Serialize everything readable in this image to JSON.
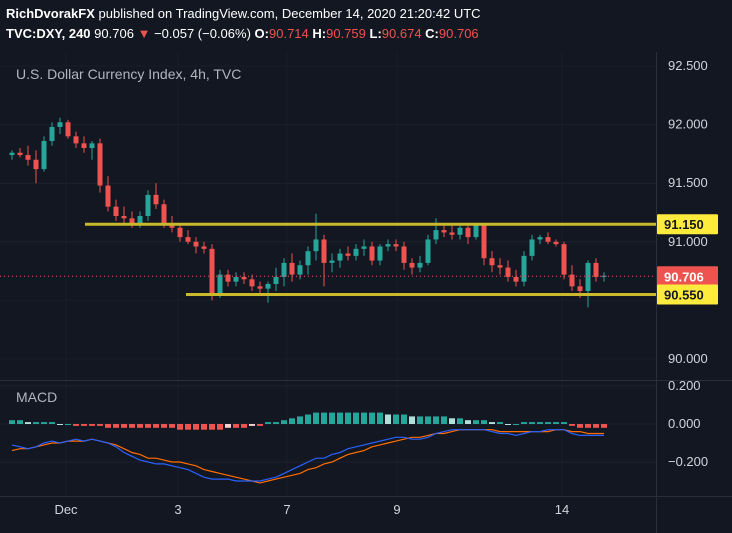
{
  "header": {
    "author": "RichDvorakFX",
    "published_text": "published on TradingView.com, December 14, 2020 21:20:42 UTC",
    "symbol": "TVC:DXY, 240",
    "last": "90.706",
    "change_icon": "triangle-down-icon",
    "change": "−0.057 (−0.06%)",
    "o_label": "O:",
    "o_value": "90.714",
    "h_label": "H:",
    "h_value": "90.759",
    "l_label": "L:",
    "l_value": "90.674",
    "c_label": "C:",
    "c_value": "90.706"
  },
  "colors": {
    "background": "#131722",
    "up": "#26a69a",
    "down": "#ef5350",
    "level_lines": "#c9b92b",
    "macd_line": "#2962ff",
    "signal_line": "#ff6d00",
    "hist_up_strong": "#26a69a",
    "hist_up_weak": "#b2dfdb",
    "hist_down_strong": "#ef5350",
    "hist_down_weak": "#ffcdd2"
  },
  "chart_data": [
    {
      "type": "candlestick",
      "title": "U.S. Dollar Currency Index, 4h, TVC",
      "ylim": [
        89.95,
        92.55
      ],
      "y_ticks": [
        "92.500",
        "92.000",
        "91.500",
        "91.000",
        "90.000"
      ],
      "x_ticks": [
        "Dec",
        "3",
        "7",
        "9",
        "14"
      ],
      "candles": [
        [
          91.74,
          91.78,
          91.7,
          91.76
        ],
        [
          91.76,
          91.8,
          91.72,
          91.74
        ],
        [
          91.74,
          91.82,
          91.65,
          91.7
        ],
        [
          91.7,
          91.78,
          91.5,
          91.62
        ],
        [
          91.62,
          91.9,
          91.6,
          91.86
        ],
        [
          91.86,
          92.02,
          91.82,
          91.98
        ],
        [
          91.98,
          92.06,
          91.92,
          92.02
        ],
        [
          92.02,
          92.04,
          91.88,
          91.9
        ],
        [
          91.9,
          91.94,
          91.8,
          91.84
        ],
        [
          91.84,
          91.9,
          91.76,
          91.8
        ],
        [
          91.8,
          91.86,
          91.7,
          91.84
        ],
        [
          91.84,
          91.88,
          91.42,
          91.48
        ],
        [
          91.48,
          91.56,
          91.26,
          91.3
        ],
        [
          91.3,
          91.36,
          91.18,
          91.22
        ],
        [
          91.22,
          91.3,
          91.16,
          91.2
        ],
        [
          91.2,
          91.26,
          91.12,
          91.16
        ],
        [
          91.16,
          91.26,
          91.12,
          91.22
        ],
        [
          91.22,
          91.44,
          91.18,
          91.4
        ],
        [
          91.4,
          91.5,
          91.28,
          91.32
        ],
        [
          91.32,
          91.36,
          91.12,
          91.16
        ],
        [
          91.16,
          91.22,
          91.08,
          91.12
        ],
        [
          91.12,
          91.16,
          91.0,
          91.04
        ],
        [
          91.04,
          91.1,
          90.98,
          91.0
        ],
        [
          91.0,
          91.04,
          90.9,
          90.96
        ],
        [
          90.96,
          91.0,
          90.9,
          90.94
        ],
        [
          90.94,
          90.98,
          90.5,
          90.56
        ],
        [
          90.56,
          90.76,
          90.52,
          90.72
        ],
        [
          90.72,
          90.76,
          90.62,
          90.66
        ],
        [
          90.66,
          90.74,
          90.62,
          90.7
        ],
        [
          90.7,
          90.74,
          90.64,
          90.68
        ],
        [
          90.68,
          90.72,
          90.58,
          90.62
        ],
        [
          90.62,
          90.66,
          90.54,
          90.6
        ],
        [
          90.6,
          90.66,
          90.48,
          90.64
        ],
        [
          90.64,
          90.78,
          90.58,
          90.7
        ],
        [
          90.7,
          90.86,
          90.62,
          90.82
        ],
        [
          90.82,
          90.9,
          90.66,
          90.72
        ],
        [
          90.72,
          90.84,
          90.68,
          90.8
        ],
        [
          90.8,
          90.96,
          90.72,
          90.92
        ],
        [
          90.92,
          91.24,
          90.84,
          91.02
        ],
        [
          91.02,
          91.06,
          90.62,
          90.82
        ],
        [
          90.82,
          90.9,
          90.74,
          90.84
        ],
        [
          90.84,
          90.94,
          90.78,
          90.9
        ],
        [
          90.9,
          90.96,
          90.84,
          90.88
        ],
        [
          90.88,
          90.98,
          90.84,
          90.94
        ],
        [
          90.94,
          91.02,
          90.88,
          90.96
        ],
        [
          90.96,
          91.0,
          90.8,
          90.84
        ],
        [
          90.84,
          90.98,
          90.8,
          90.96
        ],
        [
          90.96,
          91.02,
          90.92,
          90.98
        ],
        [
          90.98,
          91.02,
          90.92,
          90.96
        ],
        [
          90.96,
          91.0,
          90.76,
          90.82
        ],
        [
          90.82,
          90.86,
          90.72,
          90.78
        ],
        [
          90.78,
          90.88,
          90.74,
          90.82
        ],
        [
          90.82,
          91.06,
          90.8,
          91.02
        ],
        [
          91.02,
          91.2,
          90.98,
          91.1
        ],
        [
          91.1,
          91.14,
          91.04,
          91.08
        ],
        [
          91.08,
          91.16,
          91.02,
          91.06
        ],
        [
          91.06,
          91.16,
          91.02,
          91.12
        ],
        [
          91.12,
          91.16,
          90.98,
          91.04
        ],
        [
          91.04,
          91.16,
          91.02,
          91.14
        ],
        [
          91.14,
          91.16,
          90.8,
          90.86
        ],
        [
          90.86,
          90.92,
          90.74,
          90.8
        ],
        [
          90.8,
          90.86,
          90.72,
          90.78
        ],
        [
          90.78,
          90.84,
          90.66,
          90.7
        ],
        [
          90.7,
          90.76,
          90.62,
          90.66
        ],
        [
          90.66,
          90.92,
          90.62,
          90.88
        ],
        [
          90.88,
          91.06,
          90.84,
          91.02
        ],
        [
          91.02,
          91.06,
          90.98,
          91.04
        ],
        [
          91.04,
          91.08,
          90.98,
          91.0
        ],
        [
          91.0,
          91.02,
          90.96,
          90.98
        ],
        [
          90.98,
          91.0,
          90.68,
          90.72
        ],
        [
          90.72,
          90.8,
          90.58,
          90.62
        ],
        [
          90.62,
          90.68,
          90.52,
          90.58
        ],
        [
          90.58,
          90.84,
          90.44,
          90.82
        ],
        [
          90.82,
          90.86,
          90.66,
          90.7
        ],
        [
          90.7,
          90.74,
          90.66,
          90.71
        ]
      ],
      "levels": [
        {
          "value": 91.15,
          "label": "91.150"
        },
        {
          "value": 90.55,
          "label": "90.550"
        }
      ],
      "last_price": {
        "value": 90.706,
        "label": "90.706"
      }
    },
    {
      "type": "macd",
      "title": "MACD",
      "ylim": [
        -0.3,
        0.22
      ],
      "y_ticks": [
        "0.200",
        "0.000",
        "−0.200"
      ],
      "macd": [
        -0.11,
        -0.12,
        -0.13,
        -0.12,
        -0.1,
        -0.09,
        -0.1,
        -0.09,
        -0.08,
        -0.09,
        -0.08,
        -0.09,
        -0.1,
        -0.12,
        -0.15,
        -0.17,
        -0.19,
        -0.2,
        -0.21,
        -0.21,
        -0.22,
        -0.23,
        -0.24,
        -0.26,
        -0.28,
        -0.29,
        -0.29,
        -0.29,
        -0.3,
        -0.3,
        -0.3,
        -0.3,
        -0.29,
        -0.28,
        -0.26,
        -0.24,
        -0.22,
        -0.2,
        -0.18,
        -0.18,
        -0.16,
        -0.15,
        -0.13,
        -0.12,
        -0.11,
        -0.1,
        -0.09,
        -0.08,
        -0.07,
        -0.07,
        -0.08,
        -0.08,
        -0.07,
        -0.05,
        -0.04,
        -0.03,
        -0.03,
        -0.03,
        -0.03,
        -0.03,
        -0.04,
        -0.05,
        -0.05,
        -0.06,
        -0.05,
        -0.04,
        -0.04,
        -0.03,
        -0.03,
        -0.03,
        -0.05,
        -0.06,
        -0.06,
        -0.06,
        -0.06
      ],
      "signal": [
        -0.14,
        -0.13,
        -0.13,
        -0.12,
        -0.11,
        -0.1,
        -0.1,
        -0.09,
        -0.09,
        -0.09,
        -0.08,
        -0.09,
        -0.1,
        -0.11,
        -0.13,
        -0.15,
        -0.16,
        -0.18,
        -0.18,
        -0.19,
        -0.2,
        -0.2,
        -0.21,
        -0.22,
        -0.24,
        -0.25,
        -0.26,
        -0.27,
        -0.28,
        -0.29,
        -0.3,
        -0.31,
        -0.3,
        -0.29,
        -0.28,
        -0.27,
        -0.26,
        -0.24,
        -0.23,
        -0.21,
        -0.2,
        -0.18,
        -0.16,
        -0.15,
        -0.14,
        -0.12,
        -0.11,
        -0.1,
        -0.09,
        -0.08,
        -0.07,
        -0.07,
        -0.06,
        -0.05,
        -0.05,
        -0.04,
        -0.03,
        -0.03,
        -0.03,
        -0.03,
        -0.03,
        -0.04,
        -0.04,
        -0.04,
        -0.04,
        -0.04,
        -0.04,
        -0.04,
        -0.03,
        -0.03,
        -0.04,
        -0.04,
        -0.05,
        -0.05,
        -0.05
      ],
      "histogram": [
        0.02,
        0.02,
        0.01,
        0.01,
        0.01,
        0.01,
        0.0,
        0.0,
        -0.01,
        -0.01,
        -0.01,
        -0.01,
        -0.02,
        -0.02,
        -0.02,
        -0.02,
        -0.02,
        -0.02,
        -0.02,
        -0.02,
        -0.02,
        -0.03,
        -0.03,
        -0.03,
        -0.03,
        -0.03,
        -0.03,
        -0.02,
        -0.02,
        -0.02,
        -0.01,
        -0.01,
        0.01,
        0.01,
        0.02,
        0.03,
        0.04,
        0.05,
        0.06,
        0.06,
        0.06,
        0.06,
        0.06,
        0.06,
        0.06,
        0.06,
        0.06,
        0.05,
        0.05,
        0.05,
        0.04,
        0.04,
        0.04,
        0.04,
        0.04,
        0.03,
        0.03,
        0.02,
        0.02,
        0.02,
        0.01,
        0.01,
        0.0,
        0.0,
        0.01,
        0.01,
        0.01,
        0.01,
        0.01,
        0.01,
        -0.01,
        -0.02,
        -0.02,
        -0.02,
        -0.02
      ]
    }
  ]
}
